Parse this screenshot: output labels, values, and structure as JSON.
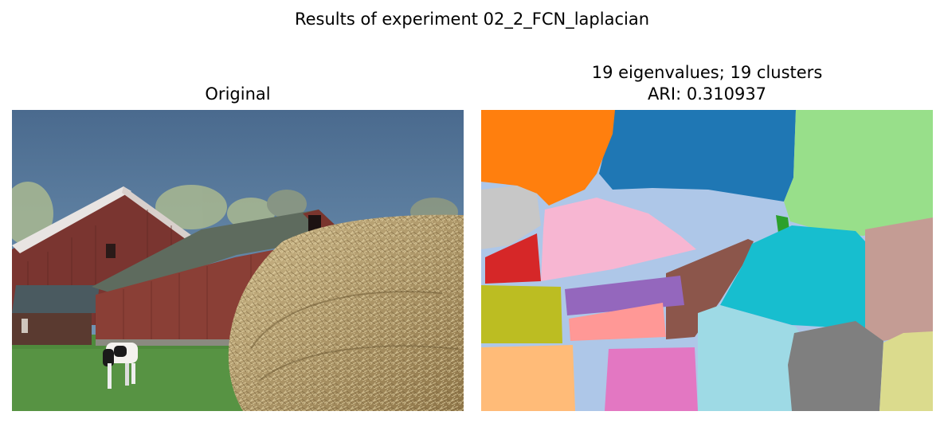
{
  "figure": {
    "suptitle": "Results of experiment 02_2_FCN_laplacian"
  },
  "panels": {
    "left": {
      "title": "Original"
    },
    "right": {
      "title_line1": "19 eigenvalues; 19 clusters",
      "title_line2": "ARI: 0.310937"
    }
  },
  "segmentation": {
    "eigenvalues": 19,
    "clusters": 19,
    "ari": 0.310937,
    "palette": [
      "#ff7f0e",
      "#1f77b4",
      "#98df8a",
      "#c7c7c7",
      "#aec7e8",
      "#f7b6d2",
      "#2ca02c",
      "#d62728",
      "#8c564b",
      "#17becf",
      "#c49c94",
      "#bcbd22",
      "#9467bd",
      "#ff9896",
      "#ffbb78",
      "#e377c2",
      "#9edae5",
      "#7f7f7f",
      "#dbdb8d"
    ]
  }
}
